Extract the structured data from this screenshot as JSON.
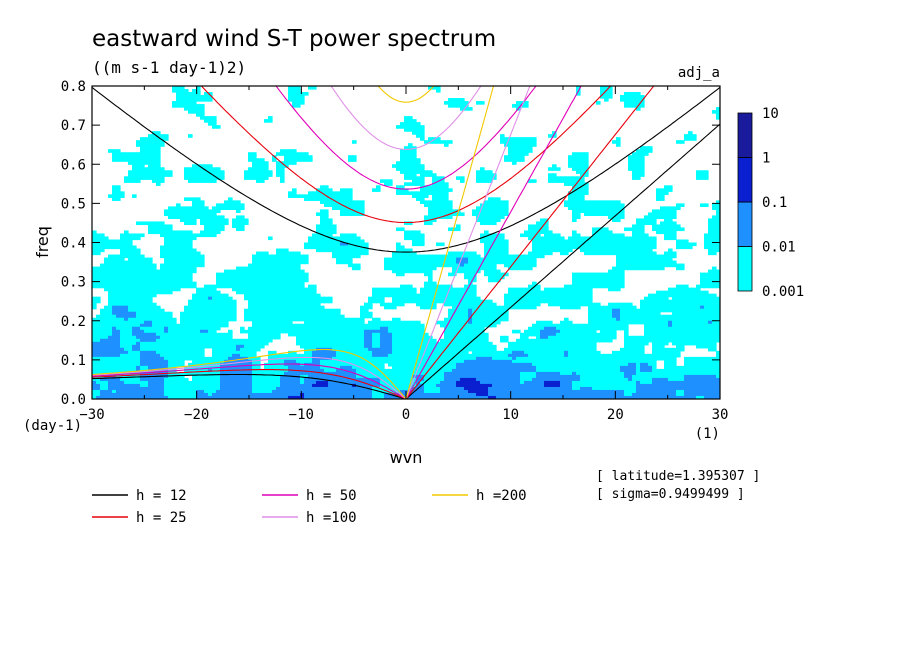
{
  "chart_data": {
    "type": "heatmap",
    "title": "eastward wind S-T power spectrum",
    "subtitle": "((m s-1 day-1)2)",
    "tag": "adj_a",
    "xlabel": "wvn",
    "ylabel": "freq",
    "x_unit": "(1)",
    "y_unit": "(day-1)",
    "xlim": [
      -30,
      30
    ],
    "ylim": [
      0,
      0.8
    ],
    "xticks": [
      -30,
      -20,
      -10,
      0,
      10,
      20,
      30
    ],
    "yticks": [
      0.0,
      0.1,
      0.2,
      0.3,
      0.4,
      0.5,
      0.6,
      0.7,
      0.8
    ],
    "color_levels": [
      "0.001",
      "0.01",
      "0.1",
      "1",
      "10"
    ],
    "colors": [
      "#00ffff",
      "#1e90ff",
      "#0a1fcf",
      "#1a1a9c"
    ],
    "legend": {
      "placement": "bottom",
      "entries": [
        {
          "label": "h = 12",
          "color": "#000000",
          "h": 12
        },
        {
          "label": "h = 25",
          "color": "#e8000c",
          "h": 25
        },
        {
          "label": "h = 50",
          "color": "#e000b8",
          "h": 50
        },
        {
          "label": "h =100",
          "color": "#e090e8",
          "h": 100
        },
        {
          "label": "h =200",
          "color": "#f2c800",
          "h": 200
        }
      ]
    },
    "annotations": [
      "[ latitude=1.395307 ]",
      "[ sigma=0.9499499 ]"
    ]
  }
}
